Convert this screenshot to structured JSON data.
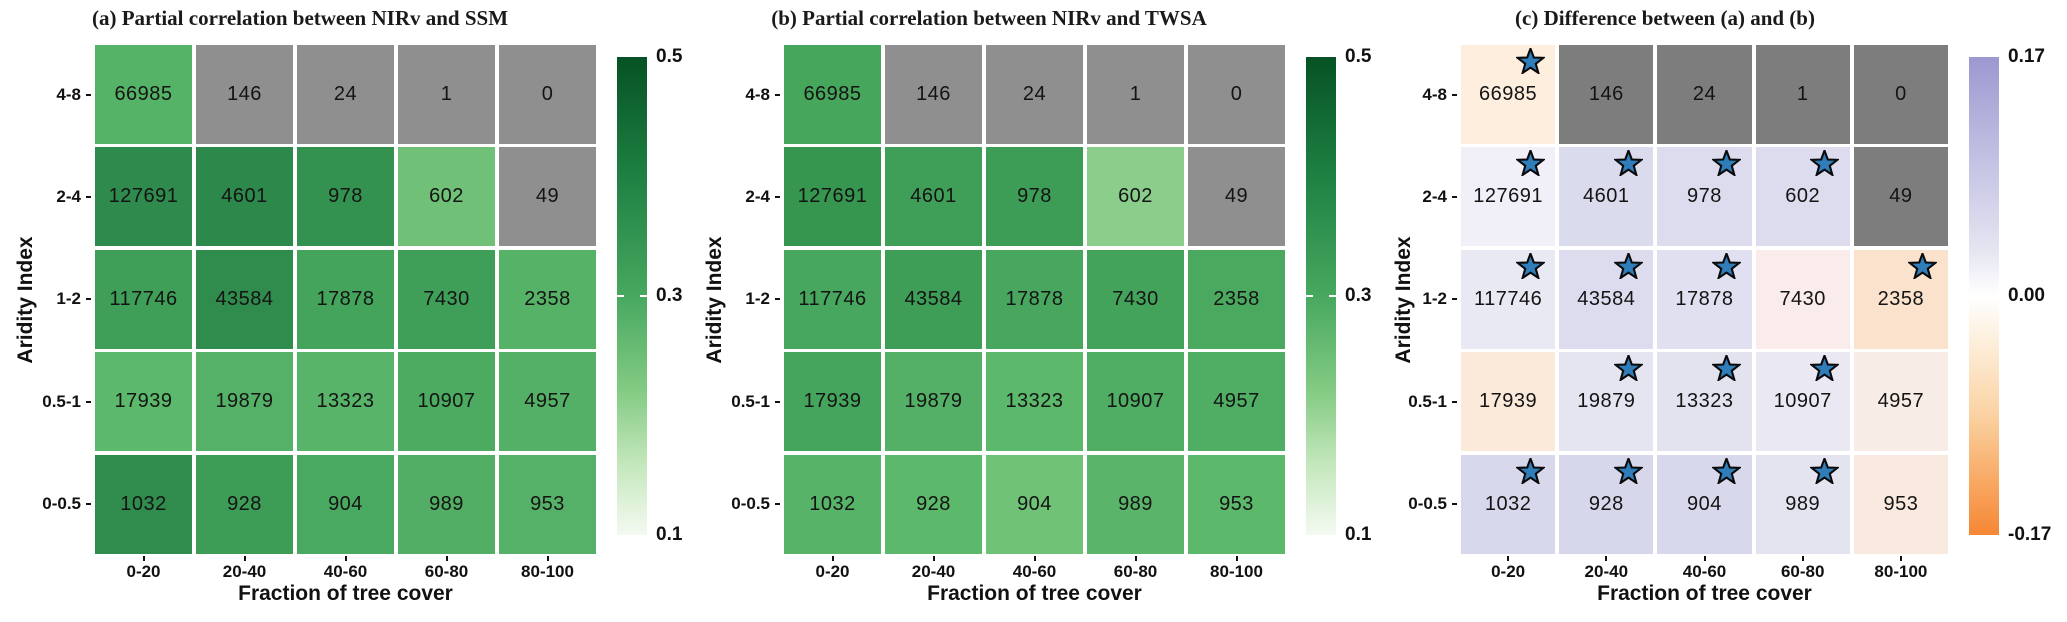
{
  "star_color": "#2f7db9",
  "star_outline": "#0a0a0a",
  "panels": [
    {
      "id": "a",
      "title": "(a) Partial correlation between NIRv and SSM",
      "xlabel": "Fraction of tree cover",
      "ylabel": "Aridity Index",
      "xticks": [
        "0-20",
        "20-40",
        "40-60",
        "60-80",
        "80-100"
      ],
      "colorbar": {
        "style": "greens",
        "ticks": [
          "0.5",
          "0.3",
          "0.1"
        ]
      },
      "rows": [
        {
          "label": "4-8",
          "cells": [
            {
              "v": "66985",
              "c": "#55b367",
              "star": false
            },
            {
              "v": "146",
              "c": "#8f8f8f",
              "star": false
            },
            {
              "v": "24",
              "c": "#8f8f8f",
              "star": false
            },
            {
              "v": "1",
              "c": "#8f8f8f",
              "star": false
            },
            {
              "v": "0",
              "c": "#8f8f8f",
              "star": false
            }
          ]
        },
        {
          "label": "2-4",
          "cells": [
            {
              "v": "127691",
              "c": "#2e8b4d",
              "star": false
            },
            {
              "v": "4601",
              "c": "#2c894b",
              "star": false
            },
            {
              "v": "978",
              "c": "#339250",
              "star": false
            },
            {
              "v": "602",
              "c": "#70c177",
              "star": false
            },
            {
              "v": "49",
              "c": "#8f8f8f",
              "star": false
            }
          ]
        },
        {
          "label": "1-2",
          "cells": [
            {
              "v": "117746",
              "c": "#3f9e58",
              "star": false
            },
            {
              "v": "43584",
              "c": "#2f8c4d",
              "star": false
            },
            {
              "v": "17878",
              "c": "#45a45c",
              "star": false
            },
            {
              "v": "7430",
              "c": "#3f9e58",
              "star": false
            },
            {
              "v": "2358",
              "c": "#56b267",
              "star": false
            }
          ]
        },
        {
          "label": "0.5-1",
          "cells": [
            {
              "v": "17939",
              "c": "#5cb86b",
              "star": false
            },
            {
              "v": "19879",
              "c": "#55b167",
              "star": false
            },
            {
              "v": "13323",
              "c": "#58b469",
              "star": false
            },
            {
              "v": "10907",
              "c": "#4cab61",
              "star": false
            },
            {
              "v": "4957",
              "c": "#53b066",
              "star": false
            }
          ]
        },
        {
          "label": "0-0.5",
          "cells": [
            {
              "v": "1032",
              "c": "#2f8c4d",
              "star": false
            },
            {
              "v": "928",
              "c": "#3d9c56",
              "star": false
            },
            {
              "v": "904",
              "c": "#4aa960",
              "star": false
            },
            {
              "v": "989",
              "c": "#52ae64",
              "star": false
            },
            {
              "v": "953",
              "c": "#55b167",
              "star": false
            }
          ]
        }
      ]
    },
    {
      "id": "b",
      "title": "(b) Partial correlation between NIRv and TWSA",
      "xlabel": "Fraction of tree cover",
      "ylabel": "Aridity Index",
      "xticks": [
        "0-20",
        "20-40",
        "40-60",
        "60-80",
        "80-100"
      ],
      "colorbar": {
        "style": "greens",
        "ticks": [
          "0.5",
          "0.3",
          "0.1"
        ]
      },
      "rows": [
        {
          "label": "4-8",
          "cells": [
            {
              "v": "66985",
              "c": "#46a65c",
              "star": false
            },
            {
              "v": "146",
              "c": "#8f8f8f",
              "star": false
            },
            {
              "v": "24",
              "c": "#8f8f8f",
              "star": false
            },
            {
              "v": "1",
              "c": "#8f8f8f",
              "star": false
            },
            {
              "v": "0",
              "c": "#8f8f8f",
              "star": false
            }
          ]
        },
        {
          "label": "2-4",
          "cells": [
            {
              "v": "127691",
              "c": "#36954f",
              "star": false
            },
            {
              "v": "4601",
              "c": "#3f9f58",
              "star": false
            },
            {
              "v": "978",
              "c": "#3d9c56",
              "star": false
            },
            {
              "v": "602",
              "c": "#8bce8c",
              "star": false
            },
            {
              "v": "49",
              "c": "#8f8f8f",
              "star": false
            }
          ]
        },
        {
          "label": "1-2",
          "cells": [
            {
              "v": "117746",
              "c": "#48a75e",
              "star": false
            },
            {
              "v": "43584",
              "c": "#3e9d57",
              "star": false
            },
            {
              "v": "17878",
              "c": "#48a65e",
              "star": false
            },
            {
              "v": "7430",
              "c": "#44a35b",
              "star": false
            },
            {
              "v": "2358",
              "c": "#4aa95f",
              "star": false
            }
          ]
        },
        {
          "label": "0.5-1",
          "cells": [
            {
              "v": "17939",
              "c": "#46a55c",
              "star": false
            },
            {
              "v": "19879",
              "c": "#53b066",
              "star": false
            },
            {
              "v": "13323",
              "c": "#5cb86b",
              "star": false
            },
            {
              "v": "10907",
              "c": "#50ad64",
              "star": false
            },
            {
              "v": "4957",
              "c": "#50ad64",
              "star": false
            }
          ]
        },
        {
          "label": "0-0.5",
          "cells": [
            {
              "v": "1032",
              "c": "#57b368",
              "star": false
            },
            {
              "v": "928",
              "c": "#5cb86b",
              "star": false
            },
            {
              "v": "904",
              "c": "#6fc276",
              "star": false
            },
            {
              "v": "989",
              "c": "#5ab56a",
              "star": false
            },
            {
              "v": "953",
              "c": "#5cb86b",
              "star": false
            }
          ]
        }
      ]
    },
    {
      "id": "c",
      "title": "(c) Difference between (a) and (b)",
      "xlabel": "Fraction of tree cover",
      "ylabel": "Aridity Index",
      "xticks": [
        "0-20",
        "20-40",
        "40-60",
        "60-80",
        "80-100"
      ],
      "colorbar": {
        "style": "diverging",
        "ticks": [
          "0.17",
          "0.00",
          "-0.17"
        ]
      },
      "rows": [
        {
          "label": "4-8",
          "cells": [
            {
              "v": "66985",
              "c": "#fdeede",
              "star": true
            },
            {
              "v": "146",
              "c": "#7d7d7d",
              "star": false
            },
            {
              "v": "24",
              "c": "#7d7d7d",
              "star": false
            },
            {
              "v": "1",
              "c": "#7d7d7d",
              "star": false
            },
            {
              "v": "0",
              "c": "#7d7d7d",
              "star": false
            }
          ]
        },
        {
          "label": "2-4",
          "cells": [
            {
              "v": "127691",
              "c": "#f1f0f8",
              "star": true
            },
            {
              "v": "4601",
              "c": "#dbdbee",
              "star": true
            },
            {
              "v": "978",
              "c": "#dcdcee",
              "star": true
            },
            {
              "v": "602",
              "c": "#dddcee",
              "star": true
            },
            {
              "v": "49",
              "c": "#7d7d7d",
              "star": false
            }
          ]
        },
        {
          "label": "1-2",
          "cells": [
            {
              "v": "117746",
              "c": "#e9e9f4",
              "star": true
            },
            {
              "v": "43584",
              "c": "#dcdcee",
              "star": true
            },
            {
              "v": "17878",
              "c": "#e0e0f0",
              "star": true
            },
            {
              "v": "7430",
              "c": "#faeceb",
              "star": false
            },
            {
              "v": "2358",
              "c": "#fbe2cd",
              "star": true
            }
          ]
        },
        {
          "label": "0.5-1",
          "cells": [
            {
              "v": "17939",
              "c": "#fbe9da",
              "star": false
            },
            {
              "v": "19879",
              "c": "#e5e5f2",
              "star": true
            },
            {
              "v": "13323",
              "c": "#e3e3f0",
              "star": true
            },
            {
              "v": "10907",
              "c": "#e9e8f3",
              "star": true
            },
            {
              "v": "4957",
              "c": "#f8ece7",
              "star": false
            }
          ]
        },
        {
          "label": "0-0.5",
          "cells": [
            {
              "v": "1032",
              "c": "#d8d8ec",
              "star": true
            },
            {
              "v": "928",
              "c": "#d7d7eb",
              "star": true
            },
            {
              "v": "904",
              "c": "#d8d8ec",
              "star": true
            },
            {
              "v": "989",
              "c": "#e4e4f1",
              "star": true
            },
            {
              "v": "953",
              "c": "#f9e9de",
              "star": false
            }
          ]
        }
      ]
    }
  ],
  "chart_data": [
    {
      "type": "heatmap",
      "title": "(a) Partial correlation between NIRv and SSM",
      "xlabel": "Fraction of tree cover",
      "ylabel": "Aridity Index",
      "x_categories": [
        "0-20",
        "20-40",
        "40-60",
        "60-80",
        "80-100"
      ],
      "y_categories": [
        "4-8",
        "2-4",
        "1-2",
        "0.5-1",
        "0-0.5"
      ],
      "cell_labels": [
        [
          66985,
          146,
          24,
          1,
          0
        ],
        [
          127691,
          4601,
          978,
          602,
          49
        ],
        [
          117746,
          43584,
          17878,
          7430,
          2358
        ],
        [
          17939,
          19879,
          13323,
          10907,
          4957
        ],
        [
          1032,
          928,
          904,
          989,
          953
        ]
      ],
      "colorbar": {
        "colormap": "Greens",
        "min": 0.1,
        "max": 0.5,
        "ticks": [
          0.5,
          0.3,
          0.1
        ],
        "position": "right"
      },
      "masked_gray_cells_row_col": [
        [
          0,
          1
        ],
        [
          0,
          2
        ],
        [
          0,
          3
        ],
        [
          0,
          4
        ],
        [
          1,
          4
        ]
      ],
      "note": "cell shading encodes partial correlation (0.1-0.5); printed numbers are sample counts; gray cells are masked"
    },
    {
      "type": "heatmap",
      "title": "(b) Partial correlation between NIRv and TWSA",
      "xlabel": "Fraction of tree cover",
      "ylabel": "Aridity Index",
      "x_categories": [
        "0-20",
        "20-40",
        "40-60",
        "60-80",
        "80-100"
      ],
      "y_categories": [
        "4-8",
        "2-4",
        "1-2",
        "0.5-1",
        "0-0.5"
      ],
      "cell_labels": [
        [
          66985,
          146,
          24,
          1,
          0
        ],
        [
          127691,
          4601,
          978,
          602,
          49
        ],
        [
          117746,
          43584,
          17878,
          7430,
          2358
        ],
        [
          17939,
          19879,
          13323,
          10907,
          4957
        ],
        [
          1032,
          928,
          904,
          989,
          953
        ]
      ],
      "colorbar": {
        "colormap": "Greens",
        "min": 0.1,
        "max": 0.5,
        "ticks": [
          0.5,
          0.3,
          0.1
        ],
        "position": "right"
      },
      "masked_gray_cells_row_col": [
        [
          0,
          1
        ],
        [
          0,
          2
        ],
        [
          0,
          3
        ],
        [
          0,
          4
        ],
        [
          1,
          4
        ]
      ],
      "note": "cell shading encodes partial correlation (0.1-0.5); printed numbers are sample counts; gray cells are masked"
    },
    {
      "type": "heatmap",
      "title": "(c) Difference between (a) and (b)",
      "xlabel": "Fraction of tree cover",
      "ylabel": "Aridity Index",
      "x_categories": [
        "0-20",
        "20-40",
        "40-60",
        "60-80",
        "80-100"
      ],
      "y_categories": [
        "4-8",
        "2-4",
        "1-2",
        "0.5-1",
        "0-0.5"
      ],
      "cell_labels": [
        [
          66985,
          146,
          24,
          1,
          0
        ],
        [
          127691,
          4601,
          978,
          602,
          49
        ],
        [
          117746,
          43584,
          17878,
          7430,
          2358
        ],
        [
          17939,
          19879,
          13323,
          10907,
          4957
        ],
        [
          1032,
          928,
          904,
          989,
          953
        ]
      ],
      "colorbar": {
        "colormap": "purple-white-orange diverging",
        "min": -0.17,
        "max": 0.17,
        "ticks": [
          0.17,
          0.0,
          -0.17
        ],
        "position": "right"
      },
      "masked_gray_cells_row_col": [
        [
          0,
          1
        ],
        [
          0,
          2
        ],
        [
          0,
          3
        ],
        [
          0,
          4
        ],
        [
          1,
          4
        ]
      ],
      "star_marked_cells": [
        [
          1,
          0,
          0,
          0,
          0
        ],
        [
          1,
          1,
          1,
          1,
          0
        ],
        [
          1,
          1,
          1,
          0,
          1
        ],
        [
          0,
          1,
          1,
          1,
          0
        ],
        [
          1,
          1,
          1,
          1,
          0
        ]
      ],
      "note": "blue star marker = flagged cell; shading encodes difference in partial correlation (-0.17 to 0.17)"
    }
  ]
}
